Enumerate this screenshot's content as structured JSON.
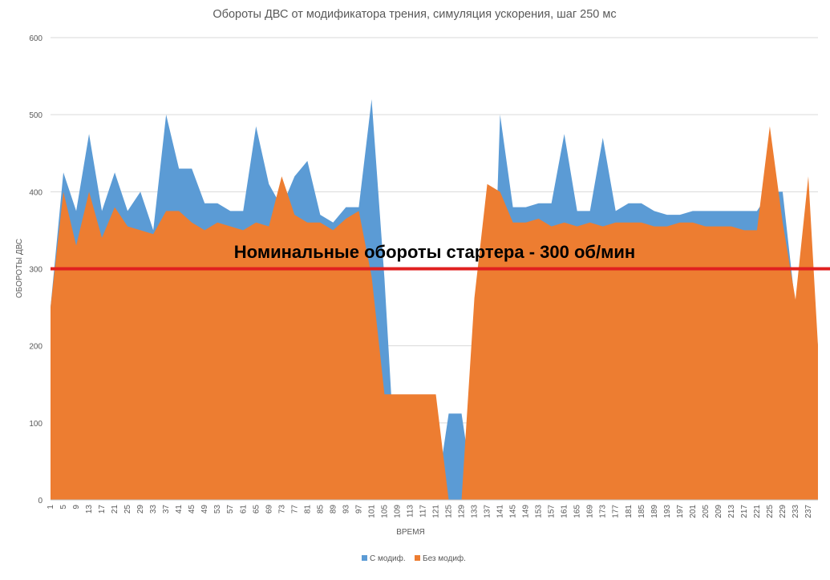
{
  "chart_data": {
    "type": "area",
    "title": "Обороты ДВС от модификатора трения, симуляция ускорения, шаг 250 мс",
    "xlabel": "ВРЕМЯ",
    "ylabel": "ОБОРОТЫ ДВС",
    "ylim": [
      0,
      600
    ],
    "yticks": [
      0,
      100,
      200,
      300,
      400,
      500,
      600
    ],
    "x_tick_labels": [
      "1",
      "5",
      "9",
      "13",
      "17",
      "21",
      "25",
      "29",
      "33",
      "37",
      "41",
      "45",
      "49",
      "53",
      "57",
      "61",
      "65",
      "69",
      "73",
      "77",
      "81",
      "85",
      "89",
      "93",
      "97",
      "101",
      "105",
      "109",
      "113",
      "117",
      "121",
      "125",
      "129",
      "133",
      "137",
      "141",
      "145",
      "149",
      "153",
      "157",
      "161",
      "165",
      "169",
      "173",
      "177",
      "181",
      "185",
      "189",
      "193",
      "197",
      "201",
      "205",
      "209",
      "213",
      "217",
      "221",
      "225",
      "229",
      "233",
      "237"
    ],
    "grid": "horizontal",
    "legend_position": "bottom",
    "x": [
      1,
      5,
      9,
      13,
      17,
      21,
      25,
      29,
      33,
      37,
      41,
      45,
      49,
      53,
      57,
      61,
      65,
      69,
      73,
      77,
      81,
      85,
      89,
      93,
      97,
      101,
      105,
      109,
      113,
      117,
      121,
      125,
      129,
      133,
      137,
      141,
      145,
      149,
      153,
      157,
      161,
      165,
      169,
      173,
      177,
      181,
      185,
      189,
      193,
      197,
      201,
      205,
      209,
      213,
      217,
      221,
      225,
      229,
      233,
      237,
      240
    ],
    "series": [
      {
        "name": "С модиф.",
        "color": "#5B9BD5",
        "values": [
          250,
          425,
          375,
          475,
          375,
          425,
          375,
          400,
          350,
          500,
          430,
          430,
          385,
          385,
          375,
          375,
          485,
          410,
          380,
          420,
          440,
          370,
          360,
          380,
          380,
          520,
          287,
          0,
          0,
          0,
          0,
          112,
          112,
          0,
          0,
          500,
          380,
          380,
          385,
          385,
          475,
          375,
          375,
          470,
          375,
          385,
          385,
          375,
          370,
          370,
          375,
          375,
          375,
          375,
          375,
          375,
          400,
          400,
          250,
          310,
          200
        ]
      },
      {
        "name": "Без модиф.",
        "color": "#ED7D31",
        "values": [
          250,
          400,
          330,
          400,
          340,
          380,
          355,
          350,
          345,
          375,
          375,
          360,
          350,
          360,
          355,
          350,
          360,
          355,
          420,
          370,
          360,
          360,
          350,
          365,
          375,
          290,
          137,
          137,
          137,
          137,
          137,
          0,
          0,
          262,
          410,
          400,
          360,
          360,
          365,
          355,
          360,
          355,
          360,
          355,
          360,
          360,
          360,
          355,
          355,
          360,
          360,
          355,
          355,
          355,
          350,
          350,
          485,
          360,
          260,
          420,
          200
        ]
      }
    ],
    "annotation": {
      "text": "Номинальные обороты стартера - 300 об/мин",
      "y": 300,
      "color": "#E02020"
    }
  }
}
